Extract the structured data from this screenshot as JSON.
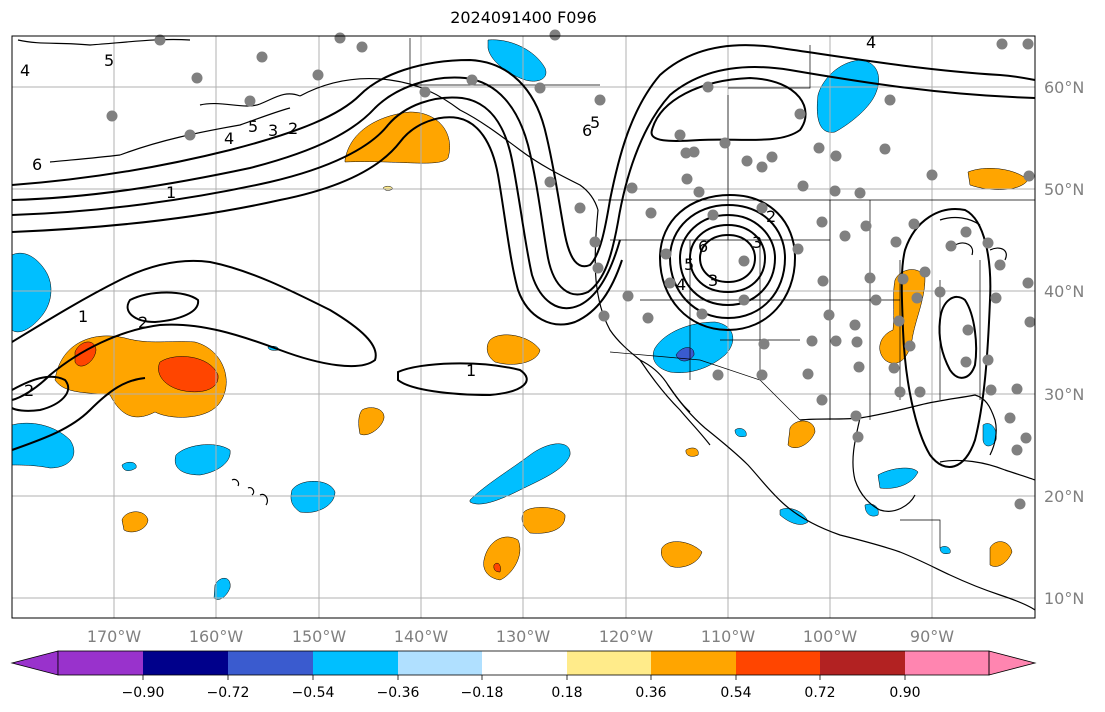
{
  "title": "2024091400 F096",
  "map": {
    "projection": "cylindrical",
    "lon_range": [
      -180,
      -80
    ],
    "lat_range": [
      8,
      65
    ],
    "lat_labels": [
      "60°N",
      "50°N",
      "40°N",
      "30°N",
      "20°N",
      "10°N"
    ],
    "lon_labels": [
      "170°W",
      "160°W",
      "150°W",
      "140°W",
      "130°W",
      "120°W",
      "110°W",
      "100°W",
      "90°W"
    ],
    "gridlines": true,
    "contour_labels": [
      "4",
      "5",
      "6",
      "5",
      "4",
      "3",
      "2",
      "1",
      "1",
      "2",
      "2",
      "1",
      "6",
      "5",
      "4",
      "3",
      "2",
      "6",
      "5",
      "4",
      "3"
    ],
    "station_color": "#808080"
  },
  "colorbar": {
    "colors": [
      "#9932cc",
      "#00008b",
      "#3a5bcf",
      "#00bfff",
      "#b0e0ff",
      "#ffffff",
      "#ffeb8a",
      "#ffa500",
      "#ff4500",
      "#b22222",
      "#ff85b0"
    ],
    "tick_labels": [
      "−0.90",
      "−0.72",
      "−0.54",
      "−0.36",
      "−0.18",
      "0.18",
      "0.36",
      "0.54",
      "0.72",
      "0.90"
    ],
    "extend": "both"
  }
}
